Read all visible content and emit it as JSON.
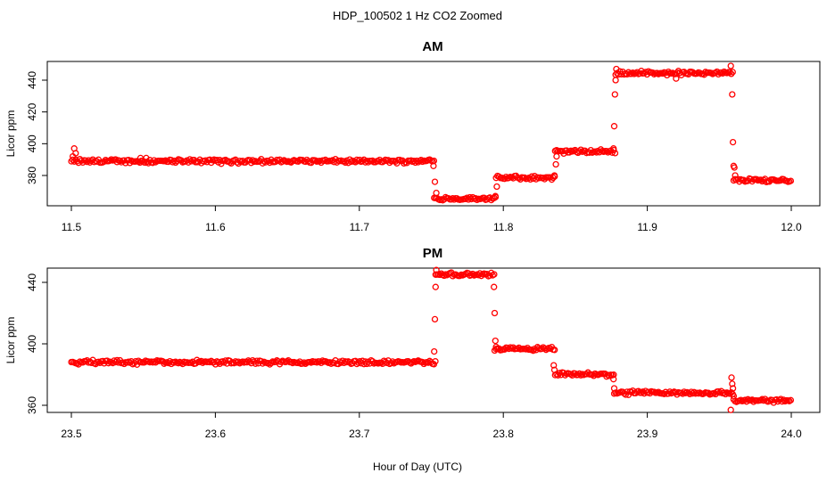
{
  "chart_data": {
    "title": "HDP_100502  1 Hz CO2 Zoomed",
    "xlabel": "Hour of Day (UTC)",
    "colors": {
      "points": "#ff0000",
      "frame": "#000000",
      "background": "#ffffff"
    },
    "legend": "none",
    "grid": false,
    "panels": [
      {
        "type": "scatter",
        "title": "AM",
        "ylabel": "Licor ppm",
        "xlim": [
          11.5,
          12.0
        ],
        "ylim": [
          362,
          452
        ],
        "xticks": [
          "11.5",
          "11.6",
          "11.7",
          "11.8",
          "11.9",
          "12.0"
        ],
        "yticks": [
          "380",
          "400",
          "420",
          "440"
        ],
        "segments": [
          {
            "x_start": 11.5,
            "x_end": 11.752,
            "y": 389
          },
          {
            "x_start": 11.752,
            "x_end": 11.795,
            "y": 365.5
          },
          {
            "x_start": 11.795,
            "x_end": 11.836,
            "y": 378.5
          },
          {
            "x_start": 11.836,
            "x_end": 11.878,
            "y": 395
          },
          {
            "x_start": 11.878,
            "x_end": 11.96,
            "y": 444.5
          },
          {
            "x_start": 11.96,
            "x_end": 12.0,
            "y": 377
          }
        ],
        "outliers": [
          {
            "x": 11.502,
            "y": 397
          },
          {
            "x": 11.503,
            "y": 394
          },
          {
            "x": 11.501,
            "y": 392
          },
          {
            "x": 11.548,
            "y": 391
          },
          {
            "x": 11.552,
            "y": 391
          },
          {
            "x": 11.7515,
            "y": 386
          },
          {
            "x": 11.7525,
            "y": 376
          },
          {
            "x": 11.7535,
            "y": 369
          },
          {
            "x": 11.7945,
            "y": 367
          },
          {
            "x": 11.7955,
            "y": 373
          },
          {
            "x": 11.8355,
            "y": 380
          },
          {
            "x": 11.8365,
            "y": 387
          },
          {
            "x": 11.837,
            "y": 392
          },
          {
            "x": 11.8765,
            "y": 397
          },
          {
            "x": 11.877,
            "y": 411
          },
          {
            "x": 11.8775,
            "y": 431
          },
          {
            "x": 11.878,
            "y": 440
          },
          {
            "x": 11.8785,
            "y": 447
          },
          {
            "x": 11.92,
            "y": 441
          },
          {
            "x": 11.958,
            "y": 449
          },
          {
            "x": 11.959,
            "y": 431
          },
          {
            "x": 11.9595,
            "y": 401
          },
          {
            "x": 11.96,
            "y": 386
          },
          {
            "x": 11.9605,
            "y": 385
          },
          {
            "x": 11.961,
            "y": 380
          }
        ]
      },
      {
        "type": "scatter",
        "title": "PM",
        "ylabel": "Licor ppm",
        "xlim": [
          23.5,
          24.0
        ],
        "ylim": [
          354,
          451
        ],
        "xticks": [
          "23.5",
          "23.6",
          "23.7",
          "23.8",
          "23.9",
          "24.0"
        ],
        "yticks": [
          "360",
          "400",
          "440"
        ],
        "segments": [
          {
            "x_start": 23.5,
            "x_end": 23.753,
            "y": 388
          },
          {
            "x_start": 23.753,
            "x_end": 23.794,
            "y": 445
          },
          {
            "x_start": 23.794,
            "x_end": 23.836,
            "y": 396.5
          },
          {
            "x_start": 23.836,
            "x_end": 23.877,
            "y": 380
          },
          {
            "x_start": 23.877,
            "x_end": 23.96,
            "y": 368
          },
          {
            "x_start": 23.96,
            "x_end": 24.0,
            "y": 363
          }
        ],
        "outliers": [
          {
            "x": 23.752,
            "y": 395
          },
          {
            "x": 23.7525,
            "y": 416
          },
          {
            "x": 23.753,
            "y": 437
          },
          {
            "x": 23.7535,
            "y": 448
          },
          {
            "x": 23.7935,
            "y": 437
          },
          {
            "x": 23.794,
            "y": 420
          },
          {
            "x": 23.7945,
            "y": 402
          },
          {
            "x": 23.795,
            "y": 398
          },
          {
            "x": 23.835,
            "y": 386
          },
          {
            "x": 23.8355,
            "y": 383
          },
          {
            "x": 23.8765,
            "y": 377
          },
          {
            "x": 23.877,
            "y": 371
          },
          {
            "x": 23.958,
            "y": 357
          },
          {
            "x": 23.9585,
            "y": 378
          },
          {
            "x": 23.959,
            "y": 374
          },
          {
            "x": 23.9595,
            "y": 371
          },
          {
            "x": 23.96,
            "y": 366
          }
        ]
      }
    ]
  }
}
